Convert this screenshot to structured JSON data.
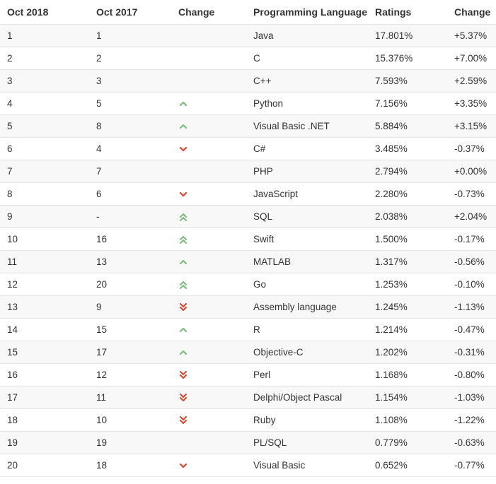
{
  "headers": [
    "Oct 2018",
    "Oct 2017",
    "Change",
    "Programming Language",
    "Ratings",
    "Change"
  ],
  "colors": {
    "up": "#7cbb7c",
    "down": "#d9452b"
  },
  "rows": [
    {
      "oct2018": "1",
      "oct2017": "1",
      "trend": "none",
      "language": "Java",
      "ratings": "17.801%",
      "change": "+5.37%"
    },
    {
      "oct2018": "2",
      "oct2017": "2",
      "trend": "none",
      "language": "C",
      "ratings": "15.376%",
      "change": "+7.00%"
    },
    {
      "oct2018": "3",
      "oct2017": "3",
      "trend": "none",
      "language": "C++",
      "ratings": "7.593%",
      "change": "+2.59%"
    },
    {
      "oct2018": "4",
      "oct2017": "5",
      "trend": "up",
      "language": "Python",
      "ratings": "7.156%",
      "change": "+3.35%"
    },
    {
      "oct2018": "5",
      "oct2017": "8",
      "trend": "up",
      "language": "Visual Basic .NET",
      "ratings": "5.884%",
      "change": "+3.15%"
    },
    {
      "oct2018": "6",
      "oct2017": "4",
      "trend": "down",
      "language": "C#",
      "ratings": "3.485%",
      "change": "-0.37%"
    },
    {
      "oct2018": "7",
      "oct2017": "7",
      "trend": "none",
      "language": "PHP",
      "ratings": "2.794%",
      "change": "+0.00%"
    },
    {
      "oct2018": "8",
      "oct2017": "6",
      "trend": "down",
      "language": "JavaScript",
      "ratings": "2.280%",
      "change": "-0.73%"
    },
    {
      "oct2018": "9",
      "oct2017": "-",
      "trend": "up2",
      "language": "SQL",
      "ratings": "2.038%",
      "change": "+2.04%"
    },
    {
      "oct2018": "10",
      "oct2017": "16",
      "trend": "up2",
      "language": "Swift",
      "ratings": "1.500%",
      "change": "-0.17%"
    },
    {
      "oct2018": "11",
      "oct2017": "13",
      "trend": "up",
      "language": "MATLAB",
      "ratings": "1.317%",
      "change": "-0.56%"
    },
    {
      "oct2018": "12",
      "oct2017": "20",
      "trend": "up2",
      "language": "Go",
      "ratings": "1.253%",
      "change": "-0.10%"
    },
    {
      "oct2018": "13",
      "oct2017": "9",
      "trend": "down2",
      "language": "Assembly language",
      "ratings": "1.245%",
      "change": "-1.13%"
    },
    {
      "oct2018": "14",
      "oct2017": "15",
      "trend": "up",
      "language": "R",
      "ratings": "1.214%",
      "change": "-0.47%"
    },
    {
      "oct2018": "15",
      "oct2017": "17",
      "trend": "up",
      "language": "Objective-C",
      "ratings": "1.202%",
      "change": "-0.31%"
    },
    {
      "oct2018": "16",
      "oct2017": "12",
      "trend": "down2",
      "language": "Perl",
      "ratings": "1.168%",
      "change": "-0.80%"
    },
    {
      "oct2018": "17",
      "oct2017": "11",
      "trend": "down2",
      "language": "Delphi/Object Pascal",
      "ratings": "1.154%",
      "change": "-1.03%"
    },
    {
      "oct2018": "18",
      "oct2017": "10",
      "trend": "down2",
      "language": "Ruby",
      "ratings": "1.108%",
      "change": "-1.22%"
    },
    {
      "oct2018": "19",
      "oct2017": "19",
      "trend": "none",
      "language": "PL/SQL",
      "ratings": "0.779%",
      "change": "-0.63%"
    },
    {
      "oct2018": "20",
      "oct2017": "18",
      "trend": "down",
      "language": "Visual Basic",
      "ratings": "0.652%",
      "change": "-0.77%"
    }
  ]
}
